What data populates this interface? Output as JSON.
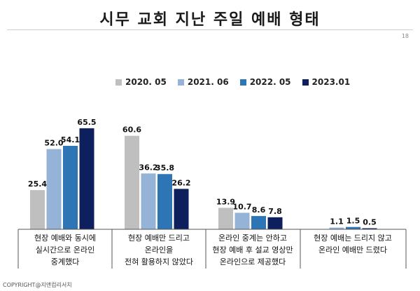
{
  "page": {
    "title": "시무 교회 지난 주일 예배 형태",
    "page_number": "18",
    "copyright": "COPYRIGHT@지앤컴리서치"
  },
  "chart_data": {
    "type": "bar",
    "title": "",
    "xlabel": "",
    "ylabel": "",
    "ylim": [
      0,
      80
    ],
    "grid": false,
    "legend_position": "top",
    "categories": [
      [
        "현장 예배와 동시에",
        "실시간으로 온라인",
        "중계했다"
      ],
      [
        "현장 예배만 드리고",
        "온라인을",
        "전혀 활용하지 않았다"
      ],
      [
        "온라인 중계는 안하고",
        "현장 예배 후 설교 영상만",
        "온라인으로 제공했다"
      ],
      [
        "현장 예배는 드리지 않고",
        "온라인 예배만 드렸다"
      ]
    ],
    "series": [
      {
        "name": "2020. 05",
        "color": "#bfbfbf",
        "values": [
          25.4,
          60.6,
          13.9,
          null
        ],
        "labels": [
          "25.4",
          "60.6",
          "13.9",
          ""
        ]
      },
      {
        "name": "2021. 06",
        "color": "#95b3d7",
        "values": [
          52.0,
          36.2,
          10.7,
          1.1
        ],
        "labels": [
          "52.0",
          "36.2",
          "10.7",
          "1.1"
        ]
      },
      {
        "name": "2022. 05",
        "color": "#2e75b6",
        "values": [
          54.1,
          35.8,
          8.6,
          1.5
        ],
        "labels": [
          "54.1",
          "35.8",
          "8.6",
          "1.5"
        ]
      },
      {
        "name": "2023.01",
        "color": "#0d1f5c",
        "values": [
          65.5,
          26.2,
          7.8,
          0.5
        ],
        "labels": [
          "65.5",
          "26.2",
          "7.8",
          "0.5"
        ]
      }
    ]
  }
}
